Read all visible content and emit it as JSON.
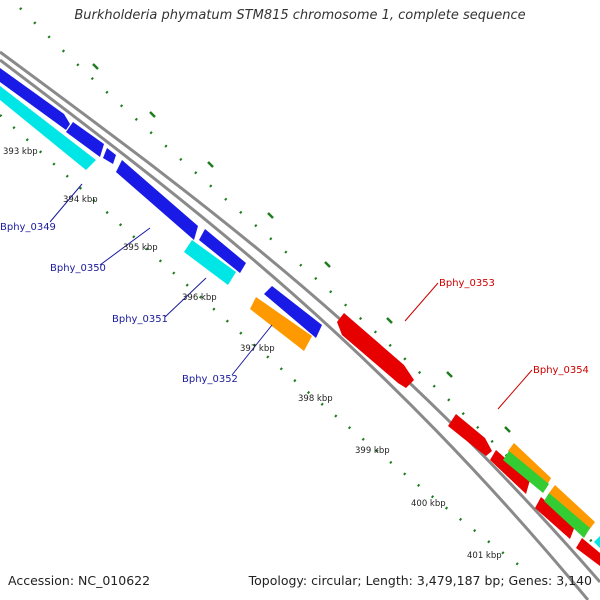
{
  "title": "Burkholderia phymatum STM815 chromosome 1, complete sequence",
  "footer": {
    "accession": "Accession: NC_010622",
    "summary": "Topology: circular; Length: 3,479,187 bp; Genes: 3,140"
  },
  "colors": {
    "backbone": "#7f7f7f",
    "tick_ring": "#1e7d1e",
    "forward_strand": "#e60000",
    "reverse_strand": "#1a1ae6",
    "cyan_genes": "#00e6e6",
    "orange_genes": "#ff9900",
    "green_genes": "#33cc33",
    "label_blue": "#1a1a9e",
    "label_red": "#cc0000"
  },
  "ticks": [
    "393 kbp",
    "394 kbp",
    "395 kbp",
    "396 kbp",
    "397 kbp",
    "398 kbp",
    "399 kbp",
    "400 kbp",
    "401 kbp"
  ],
  "gene_labels": [
    {
      "id": "Bphy_0349",
      "color": "blue"
    },
    {
      "id": "Bphy_0350",
      "color": "blue"
    },
    {
      "id": "Bphy_0351",
      "color": "blue"
    },
    {
      "id": "Bphy_0352",
      "color": "blue"
    },
    {
      "id": "Bphy_0353",
      "color": "red"
    },
    {
      "id": "Bphy_0354",
      "color": "red"
    }
  ]
}
